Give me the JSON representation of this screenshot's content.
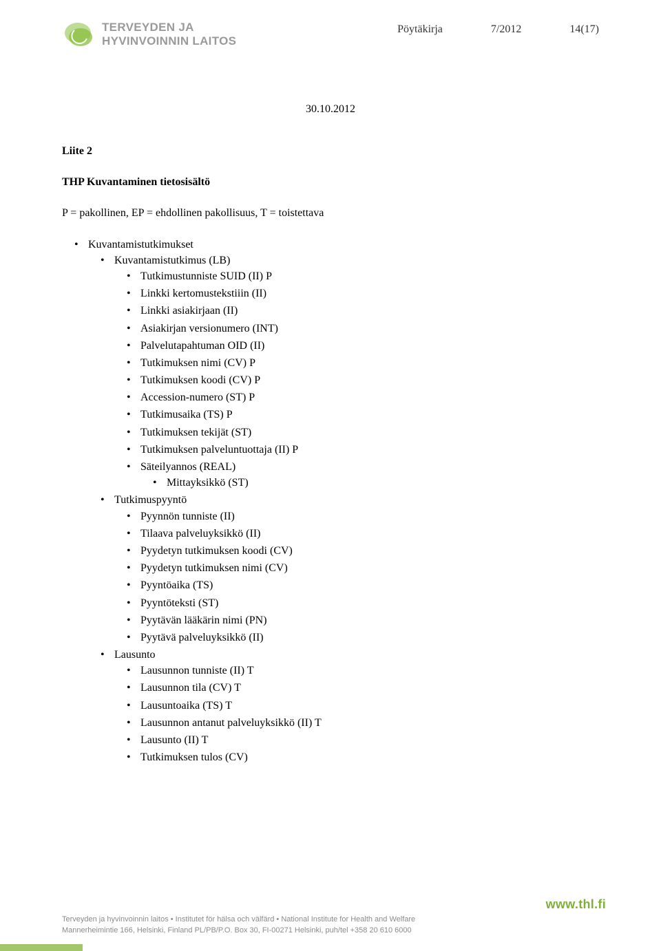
{
  "colors": {
    "logo_green": "#8bbf3f",
    "logo_gray": "#9a9a9a",
    "text": "#000000",
    "footer_gray": "#8a8a8a",
    "footer_green": "#7fb03a",
    "footer_bar": "#a4c66a",
    "background": "#ffffff"
  },
  "header": {
    "org_line1": "TERVEYDEN JA",
    "org_line2": "HYVINVOINNIN LAITOS",
    "doc_type": "Pöytäkirja",
    "doc_number": "7/2012",
    "page_of": "14(17)"
  },
  "date": "30.10.2012",
  "heading": "Liite 2",
  "subheading": "THP Kuvantaminen tietosisältö",
  "legend": "P = pakollinen, EP = ehdollinen pakollisuus, T = toistettava",
  "list": [
    {
      "label": "Kuvantamistutkimukset",
      "children": [
        {
          "label": "Kuvantamistutkimus (LB)",
          "children": [
            {
              "label": "Tutkimustunniste SUID   (II)  P"
            },
            {
              "label": "Linkki kertomustekstiiin (II)"
            },
            {
              "label": "Linkki asiakirjaan (II)"
            },
            {
              "label": "Asiakirjan versionumero (INT)"
            },
            {
              "label": "Palvelutapahtuman OID (II)"
            },
            {
              "label": "Tutkimuksen nimi (CV) P"
            },
            {
              "label": "Tutkimuksen koodi (CV) P"
            },
            {
              "label": "Accession-numero (ST) P"
            },
            {
              "label": "Tutkimusaika (TS)  P"
            },
            {
              "label": "Tutkimuksen tekijät (ST)"
            },
            {
              "label": "Tutkimuksen palveluntuottaja (II) P"
            },
            {
              "label": "Säteilyannos (REAL)",
              "children": [
                {
                  "label": "Mittayksikkö (ST)"
                }
              ]
            }
          ]
        },
        {
          "label": "Tutkimuspyyntö",
          "children": [
            {
              "label": "Pyynnön tunniste (II)"
            },
            {
              "label": "Tilaava palveluyksikkö (II)"
            },
            {
              "label": "Pyydetyn tutkimuksen koodi (CV)"
            },
            {
              "label": "Pyydetyn tutkimuksen nimi (CV)"
            },
            {
              "label": "Pyyntöaika (TS)"
            },
            {
              "label": "Pyyntöteksti (ST)"
            },
            {
              "label": "Pyytävän lääkärin nimi (PN)"
            },
            {
              "label": "Pyytävä palveluyksikkö (II)"
            }
          ]
        },
        {
          "label": "Lausunto",
          "children": [
            {
              "label": "Lausunnon tunniste (II) T"
            },
            {
              "label": "Lausunnon tila (CV) T"
            },
            {
              "label": "Lausuntoaika (TS) T"
            },
            {
              "label": "Lausunnon antanut palveluyksikkö (II) T"
            },
            {
              "label": "Lausunto (II) T"
            },
            {
              "label": "Tutkimuksen tulos (CV)"
            }
          ]
        }
      ]
    }
  ],
  "footer": {
    "url": "www.thl.fi",
    "line1": "Terveyden ja hyvinvoinnin laitos • Institutet för hälsa och välfärd • National Institute for Health and Welfare",
    "line2": "Mannerheimintie 166, Helsinki, Finland PL/PB/P.O. Box 30, FI-00271 Helsinki, puh/tel +358 20 610 6000"
  }
}
